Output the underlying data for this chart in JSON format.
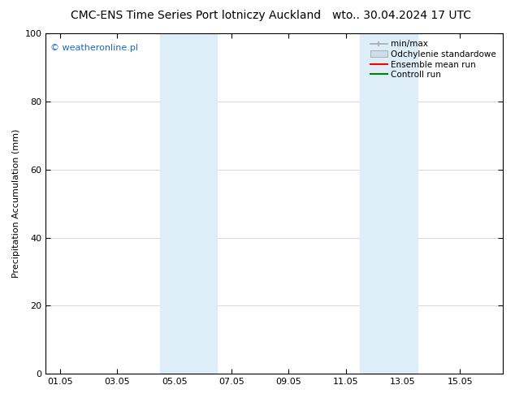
{
  "title_left": "CMC-ENS Time Series Port lotniczy Auckland",
  "title_right": "wto.. 30.04.2024 17 UTC",
  "ylabel": "Precipitation Accumulation (mm)",
  "watermark": "© weatheronline.pl",
  "watermark_color": "#1a6abf",
  "ylim": [
    0,
    100
  ],
  "yticks": [
    0,
    20,
    40,
    60,
    80,
    100
  ],
  "xlabel_ticks": [
    "01.05",
    "03.05",
    "05.05",
    "07.05",
    "09.05",
    "11.05",
    "13.05",
    "15.05"
  ],
  "xlabel_tick_positions": [
    0,
    2,
    4,
    6,
    8,
    10,
    12,
    14
  ],
  "xmin": -0.5,
  "xmax": 15.5,
  "shaded_band1_x0": 3.5,
  "shaded_band1_x1": 5.5,
  "shaded_band2_x0": 10.5,
  "shaded_band2_x1": 12.5,
  "shaded_color": "#ddeef8",
  "legend_entries": [
    {
      "label": "min/max",
      "color": "#aaaaaa",
      "lw": 1.2,
      "style": "minmax"
    },
    {
      "label": "Odchylenie standardowe",
      "color": "#ccddee",
      "lw": 8,
      "style": "fill"
    },
    {
      "label": "Ensemble mean run",
      "color": "#ff0000",
      "lw": 1.5,
      "style": "line"
    },
    {
      "label": "Controll run",
      "color": "#008000",
      "lw": 1.5,
      "style": "line"
    }
  ],
  "background_color": "#ffffff",
  "title_fontsize": 10,
  "tick_fontsize": 8,
  "ylabel_fontsize": 8,
  "legend_fontsize": 7.5
}
